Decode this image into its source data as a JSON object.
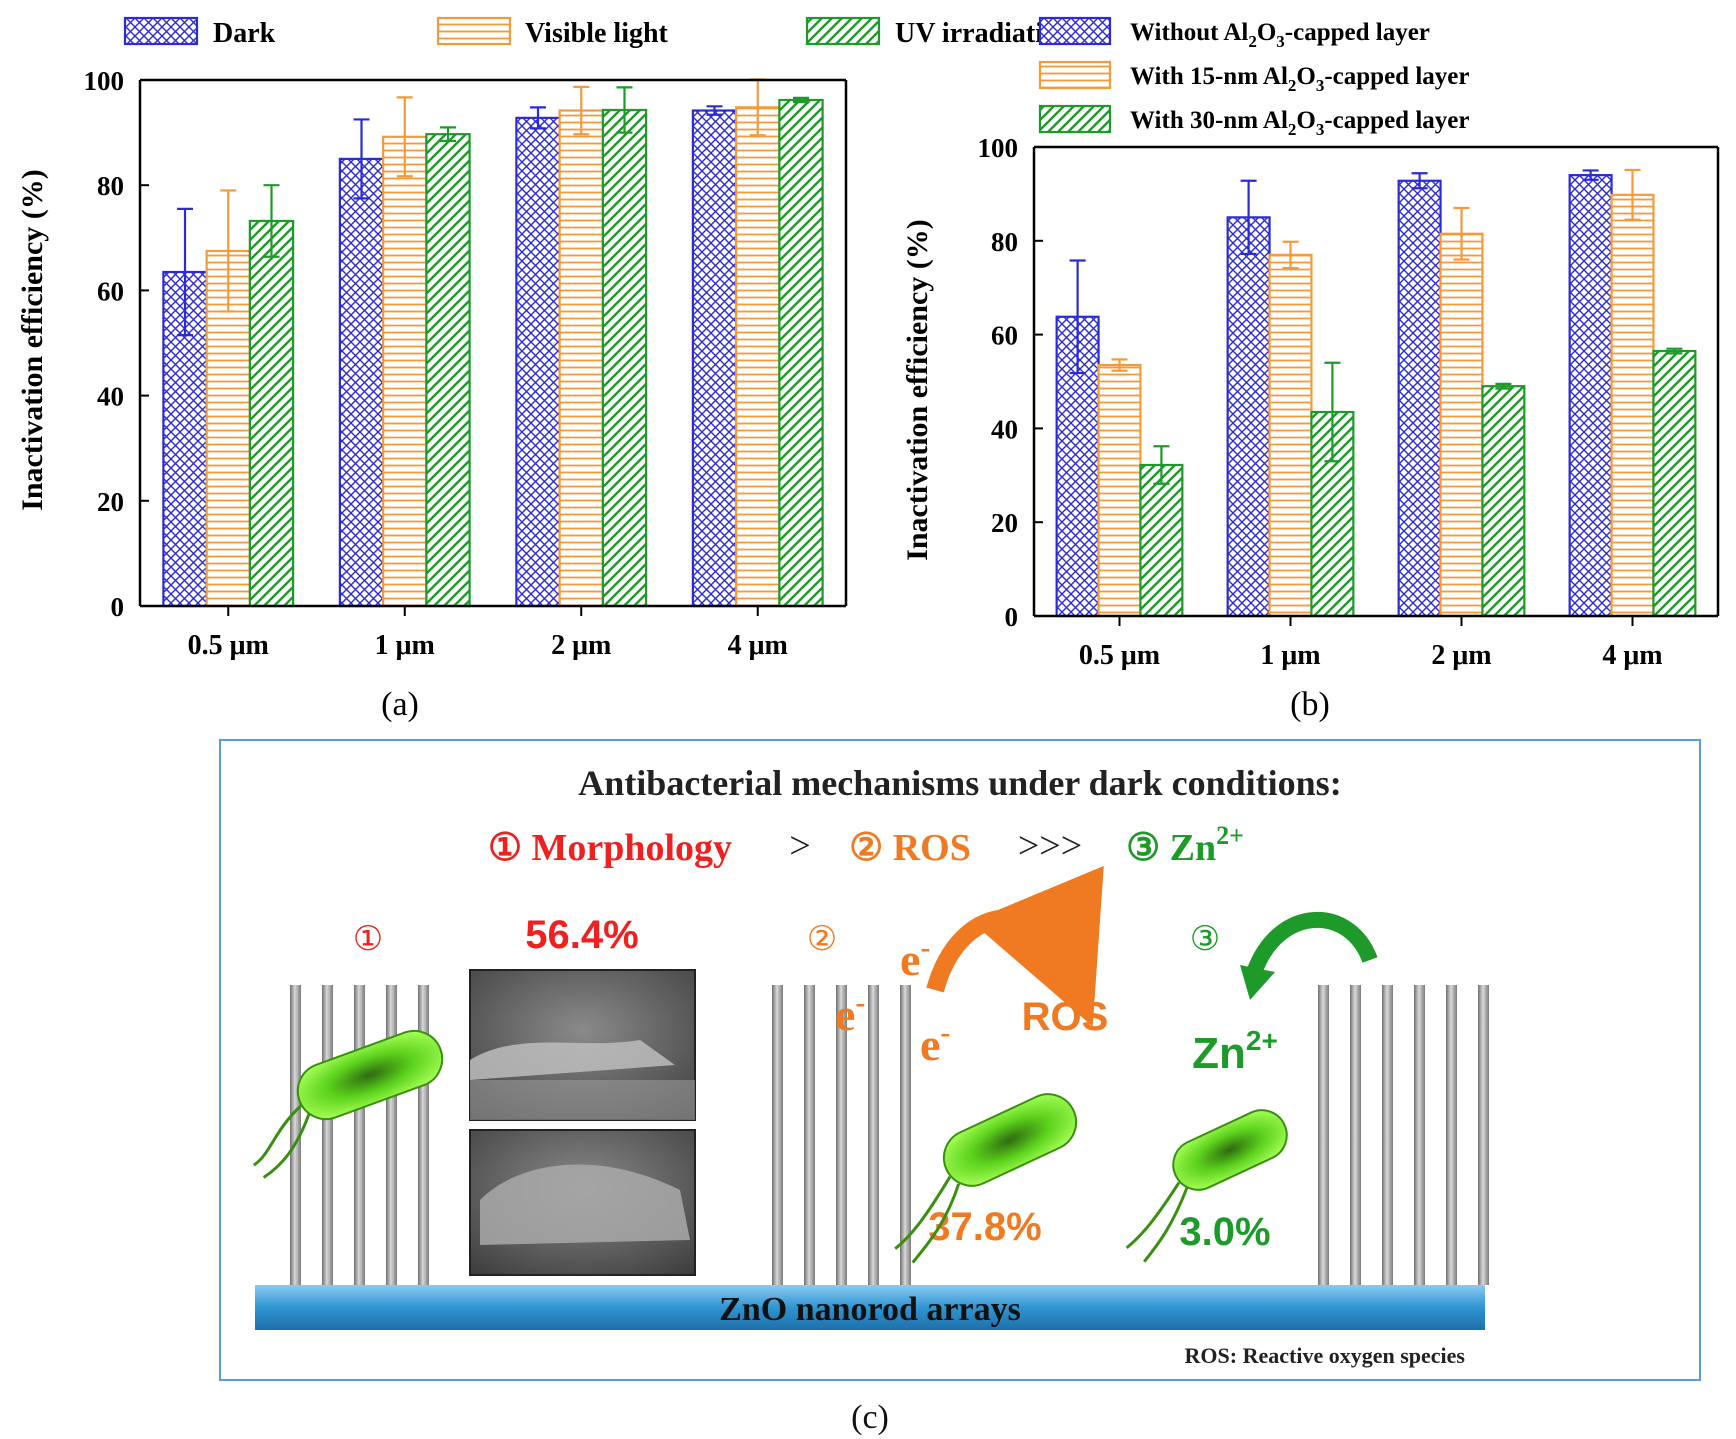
{
  "chart_data": [
    {
      "type": "bar",
      "panel_label": "(a)",
      "categories": [
        "0.5 μm",
        "1 μm",
        "2 μm",
        "4 μm"
      ],
      "ylabel": "Inactivation efficiency (%)",
      "xlabel": "",
      "ylim": [
        0,
        100
      ],
      "yticks": [
        0,
        20,
        40,
        60,
        80,
        100
      ],
      "legend_position": "top",
      "series": [
        {
          "name": "Dark",
          "values": [
            63.5,
            85.0,
            92.8,
            94.2
          ],
          "errors": [
            12.0,
            7.5,
            2.0,
            0.8
          ],
          "color": "#2b2bd6",
          "pattern": "crosshatch"
        },
        {
          "name": "Visible light",
          "values": [
            67.5,
            89.2,
            94.2,
            94.8
          ],
          "errors": [
            11.5,
            7.5,
            4.5,
            5.3
          ],
          "color": "#f39a3a",
          "pattern": "horizontal"
        },
        {
          "name": "UV irradiation",
          "values": [
            73.2,
            89.7,
            94.3,
            96.2
          ],
          "errors": [
            6.8,
            1.3,
            4.3,
            0.4
          ],
          "color": "#1e9a2a",
          "pattern": "diagonal"
        }
      ]
    },
    {
      "type": "bar",
      "panel_label": "(b)",
      "categories": [
        "0.5 μm",
        "1 μm",
        "2 μm",
        "4 μm"
      ],
      "ylabel": "Inactivation efficiency (%)",
      "xlabel": "",
      "ylim": [
        0,
        100
      ],
      "yticks": [
        0,
        20,
        40,
        60,
        80,
        100
      ],
      "legend_position": "top",
      "series": [
        {
          "name_parts": [
            "Without Al",
            "2",
            "O",
            "3",
            "-capped layer"
          ],
          "values": [
            63.8,
            85.0,
            92.8,
            94.0
          ],
          "errors": [
            12.0,
            7.8,
            1.6,
            1.0
          ],
          "color": "#2b2bd6",
          "pattern": "crosshatch"
        },
        {
          "name_parts": [
            "With 15-nm Al",
            "2",
            "O",
            "3",
            "-capped layer"
          ],
          "values": [
            53.5,
            77.0,
            81.5,
            89.8
          ],
          "errors": [
            1.2,
            2.8,
            5.5,
            5.3
          ],
          "color": "#f39a3a",
          "pattern": "horizontal"
        },
        {
          "name_parts": [
            "With 30-nm Al",
            "2",
            "O",
            "3",
            "-capped layer"
          ],
          "values": [
            32.2,
            43.5,
            49.0,
            56.5
          ],
          "errors": [
            4.0,
            10.5,
            0.5,
            0.5
          ],
          "color": "#1e9a2a",
          "pattern": "diagonal"
        }
      ]
    }
  ],
  "diagram": {
    "panel_label": "(c)",
    "title": "Antibacterial mechanisms under dark conditions:",
    "ranking": {
      "m1": "① Morphology",
      "gt1": ">",
      "m2": "② ROS",
      "gt2": ">>>",
      "m3_prefix": "③ Zn",
      "m3_sup": "2+"
    },
    "mech1": {
      "marker": "①",
      "percent": "56.4%"
    },
    "mech2": {
      "marker": "②",
      "electron": "e",
      "electron_sup": "-",
      "ros": "ROS",
      "percent": "37.8%"
    },
    "mech3": {
      "marker": "③",
      "ion": "Zn",
      "ion_sup": "2+",
      "percent": "3.0%"
    },
    "substrate_label": "ZnO nanorod arrays",
    "footnote": "ROS: Reactive oxygen species",
    "colors": {
      "m1": "#ee2020",
      "m2": "#f07a22",
      "m3": "#1e9a2a",
      "frame": "#5b9bd5",
      "substrate": "#2f95d3",
      "bacteria": "#66e022"
    }
  }
}
